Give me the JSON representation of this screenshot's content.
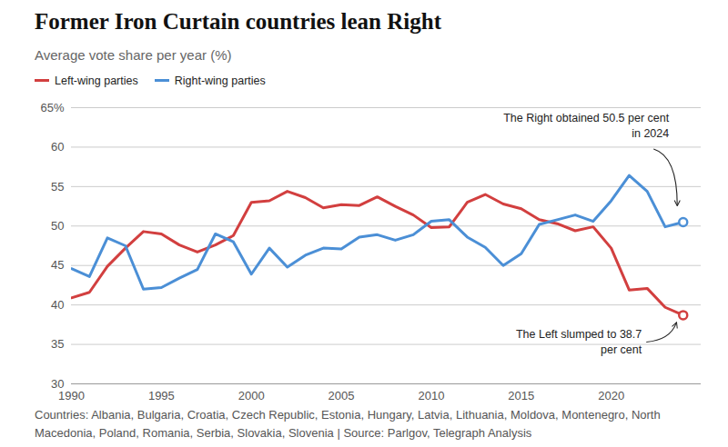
{
  "chart_data": {
    "type": "line",
    "title": "Former Iron Curtain countries lean Right",
    "subtitle": "Average vote share per year (%)",
    "caption": "Countries: Albania, Bulgaria, Croatia, Czech Republic, Estonia, Hungary, Latvia, Lithuania, Moldova, Montenegro, North Macedonia, Poland, Romania, Serbia, Slovakia, Slovenia | Source: Parlgov, Telegraph Analysis",
    "x": [
      1990,
      1991,
      1992,
      1993,
      1994,
      1995,
      1996,
      1997,
      1998,
      1999,
      2000,
      2001,
      2002,
      2003,
      2004,
      2005,
      2006,
      2007,
      2008,
      2009,
      2010,
      2011,
      2012,
      2013,
      2014,
      2015,
      2016,
      2017,
      2018,
      2019,
      2020,
      2021,
      2022,
      2023,
      2024
    ],
    "series": [
      {
        "name": "Left-wing parties",
        "color": "#d23f3f",
        "marker": "end",
        "values": [
          40.9,
          41.6,
          44.9,
          47.2,
          49.3,
          49.0,
          47.6,
          46.7,
          47.6,
          48.8,
          53.0,
          53.2,
          54.4,
          53.6,
          52.3,
          52.7,
          52.6,
          53.7,
          52.5,
          51.4,
          49.8,
          49.9,
          53.0,
          54.0,
          52.8,
          52.2,
          50.8,
          50.3,
          49.4,
          49.9,
          47.2,
          41.9,
          42.1,
          39.7,
          38.7
        ]
      },
      {
        "name": "Right-wing parties",
        "color": "#4b8fd6",
        "marker": "end",
        "values": [
          44.6,
          43.6,
          48.5,
          47.5,
          42.0,
          42.2,
          43.4,
          44.5,
          49.0,
          48.0,
          43.9,
          47.2,
          44.8,
          46.3,
          47.2,
          47.1,
          48.6,
          48.9,
          48.2,
          48.9,
          50.6,
          50.8,
          48.6,
          47.3,
          45.0,
          46.5,
          50.2,
          50.8,
          51.4,
          50.6,
          53.2,
          56.4,
          54.4,
          49.9,
          50.5
        ]
      }
    ],
    "annotations": [
      {
        "text": "The Right obtained 50.5 per cent in 2024",
        "series": "Right-wing parties"
      },
      {
        "text": "The Left slumped to 38.7 per cent",
        "series": "Left-wing parties"
      }
    ],
    "xlim": [
      1990,
      2025
    ],
    "xticks": [
      1990,
      1995,
      2000,
      2005,
      2010,
      2015,
      2020
    ],
    "ylim": [
      30,
      65
    ],
    "yticks": [
      30,
      35,
      40,
      45,
      50,
      55,
      60,
      {
        "value": 65,
        "label": "65%"
      }
    ],
    "grid": true,
    "legend": "top-left"
  }
}
